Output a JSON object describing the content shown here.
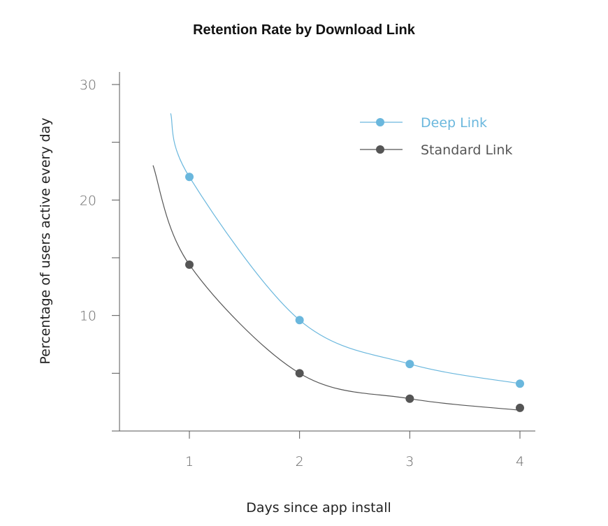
{
  "chart_data": {
    "type": "line",
    "title": "Retention Rate by Download Link",
    "xlabel": "Days since app install",
    "ylabel": "Percentage of users  active every day",
    "x": [
      1,
      2,
      3,
      4
    ],
    "xlim": [
      0.37,
      4.15
    ],
    "ylim": [
      0,
      31.2
    ],
    "y_major_ticks": [
      10,
      20,
      30
    ],
    "y_minor_ticks": [
      5,
      15,
      25
    ],
    "x_ticks": [
      1,
      2,
      3,
      4
    ],
    "x_tick_labels": [
      "1",
      "2",
      "3",
      "4"
    ],
    "y_tick_labels": [
      "10",
      "20",
      "30"
    ],
    "grid": false,
    "legend_position": "top-right",
    "series": [
      {
        "name": "Deep Link",
        "color": "#6ab7dd",
        "values": [
          22.0,
          9.6,
          5.8,
          4.1
        ],
        "fit_start": [
          0.83,
          27.5
        ],
        "fit_end": [
          4.0,
          4.1
        ]
      },
      {
        "name": "Standard Link",
        "color": "#555555",
        "values": [
          14.4,
          5.0,
          2.8,
          2.0
        ],
        "fit_start": [
          0.67,
          23.0
        ],
        "fit_end": [
          4.0,
          1.8
        ]
      }
    ]
  }
}
